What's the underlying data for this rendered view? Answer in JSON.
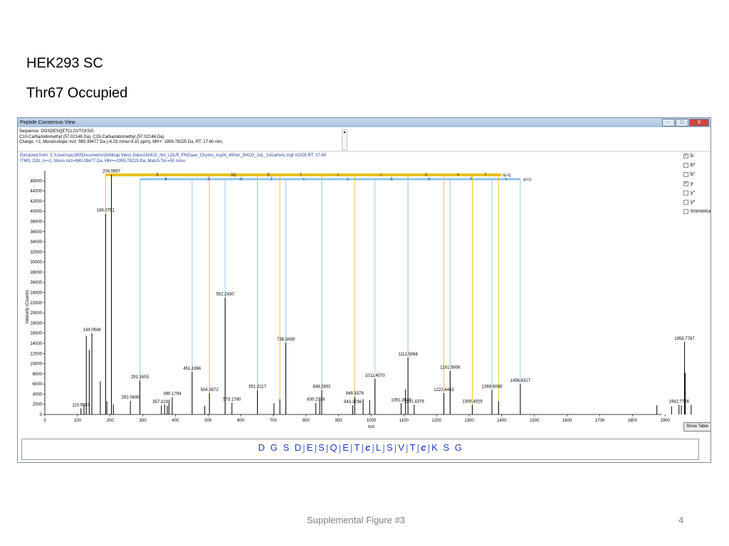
{
  "slide": {
    "title_line1": "HEK293 SC",
    "title_line2": "Thr67 Occupied",
    "footer_caption": "Supplemental Figure #3",
    "page_number": "4"
  },
  "window": {
    "title": "Peptide Consensus View",
    "controls": [
      "-",
      "□",
      "X"
    ]
  },
  "info": {
    "sequence": "Sequence: DGSDESQETCLSVTCKSG",
    "mods": "C10-Carbamidomethyl (57.02146 Da), C15-Carbamidomethyl (57.02146 Da)",
    "charge": "Charge: +2,   Monoisotopic m/z: 980.39477 Da (-4.23 mmu/-4.31 ppm),    MH+: 1959.78225 Da,    RT: 17.60 min,",
    "extracted": "Extracted from: C:\\Users\\qxc95f\\Documents\\Orbitrap Velos Data\\130415_Nis_LDLR_PNGase_Chymo_AspN_45min_5HCD_2uL_1xGalNAc.mgf   #2205   RT: 17.60",
    "scan": "ITMS, CID, z=+2, Mono m/z=980.39477 Da, MH+=1959.78225 Da, Match Tol.=50 mmu"
  },
  "ion_options": [
    {
      "label": "b",
      "checked": true
    },
    {
      "label": "b*",
      "checked": false
    },
    {
      "label": "b°",
      "checked": false
    },
    {
      "label": "y",
      "checked": true
    },
    {
      "label": "y°",
      "checked": false
    },
    {
      "label": "y*",
      "checked": false
    },
    {
      "label": "Immonium",
      "checked": false
    }
  ],
  "show_table_label": "Show Table",
  "sequence_display": {
    "residues": [
      "D",
      "G",
      "S",
      "D",
      "E",
      "S",
      "Q",
      "E",
      "T",
      "c",
      "L",
      "S",
      "V",
      "T",
      "c",
      "K",
      "S",
      "G"
    ]
  },
  "colors": {
    "b_ion": "#e8c01a",
    "y_ion": "#8ec3ea",
    "peak": "#000000",
    "sequence_text": "#2233cc"
  },
  "chart_data": {
    "type": "bar",
    "xlabel": "m/z",
    "ylabel": "Intensity (Counts)",
    "xlim": [
      0,
      2000
    ],
    "ylim": [
      0,
      48000
    ],
    "x_ticks": [
      0,
      100,
      200,
      300,
      400,
      500,
      600,
      700,
      800,
      900,
      1000,
      1100,
      1200,
      1300,
      1400,
      1500,
      1600,
      1700,
      1800,
      1900
    ],
    "y_ticks": [
      0,
      2000,
      4000,
      6000,
      8000,
      10000,
      12000,
      14000,
      16000,
      18000,
      20000,
      22000,
      24000,
      26000,
      28000,
      30000,
      32000,
      34000,
      36000,
      38000,
      40000,
      42000,
      44000,
      46000
    ],
    "b_series_label": "b[+1]",
    "y_series_label": "y[+1]",
    "peaks": [
      {
        "mz": 110.5987,
        "intensity": 1200,
        "label": "110.5987"
      },
      {
        "mz": 120,
        "intensity": 1800,
        "label": ""
      },
      {
        "mz": 127,
        "intensity": 15500,
        "label": ""
      },
      {
        "mz": 136,
        "intensity": 12700,
        "label": ""
      },
      {
        "mz": 144.0648,
        "intensity": 16000,
        "label": "144.0648"
      },
      {
        "mz": 170,
        "intensity": 6500,
        "label": ""
      },
      {
        "mz": 186.0751,
        "intensity": 39500,
        "label": "186.0751"
      },
      {
        "mz": 190,
        "intensity": 2600,
        "label": ""
      },
      {
        "mz": 204.0867,
        "intensity": 47200,
        "label": "204.0867"
      },
      {
        "mz": 210,
        "intensity": 2000,
        "label": ""
      },
      {
        "mz": 262.0846,
        "intensity": 2700,
        "label": "262.0846"
      },
      {
        "mz": 291.1653,
        "intensity": 6700,
        "label": "291.1653"
      },
      {
        "mz": 357.1039,
        "intensity": 1800,
        "label": "357.1039"
      },
      {
        "mz": 367,
        "intensity": 2000,
        "label": ""
      },
      {
        "mz": 375,
        "intensity": 1700,
        "label": ""
      },
      {
        "mz": 380,
        "intensity": 2200,
        "label": ""
      },
      {
        "mz": 390.1794,
        "intensity": 3400,
        "label": "390.1794"
      },
      {
        "mz": 451.1966,
        "intensity": 8400,
        "label": "451.1966"
      },
      {
        "mz": 490,
        "intensity": 1700,
        "label": ""
      },
      {
        "mz": 504.1672,
        "intensity": 4200,
        "label": "504.1672"
      },
      {
        "mz": 552.243,
        "intensity": 23000,
        "label": "552.2430"
      },
      {
        "mz": 573.178,
        "intensity": 2300,
        "label": "573.1780"
      },
      {
        "mz": 651.3117,
        "intensity": 4800,
        "label": "651.3117"
      },
      {
        "mz": 702,
        "intensity": 2200,
        "label": ""
      },
      {
        "mz": 720,
        "intensity": 3000,
        "label": ""
      },
      {
        "mz": 738.3439,
        "intensity": 14100,
        "label": "738.3439"
      },
      {
        "mz": 830.2708,
        "intensity": 2300,
        "label": "830.2708"
      },
      {
        "mz": 842,
        "intensity": 3000,
        "label": ""
      },
      {
        "mz": 848.2891,
        "intensity": 4800,
        "label": "848.2891"
      },
      {
        "mz": 943.3796,
        "intensity": 1800,
        "label": "943.3796"
      },
      {
        "mz": 949.3378,
        "intensity": 3500,
        "label": "949.3378"
      },
      {
        "mz": 975,
        "intensity": 3000,
        "label": ""
      },
      {
        "mz": 995,
        "intensity": 2800,
        "label": ""
      },
      {
        "mz": 1011.457,
        "intensity": 7000,
        "label": "1011.4570"
      },
      {
        "mz": 1091.3638,
        "intensity": 2200,
        "label": "1091.3638"
      },
      {
        "mz": 1105,
        "intensity": 5000,
        "label": ""
      },
      {
        "mz": 1112.5068,
        "intensity": 11200,
        "label": "1112.5068"
      },
      {
        "mz": 1131.4379,
        "intensity": 1900,
        "label": "1131.4379"
      },
      {
        "mz": 1222.4463,
        "intensity": 4200,
        "label": "1222.4463"
      },
      {
        "mz": 1241.5608,
        "intensity": 8600,
        "label": "1241.5608"
      },
      {
        "mz": 1309.4929,
        "intensity": 1900,
        "label": "1309.4929"
      },
      {
        "mz": 1369.6066,
        "intensity": 4800,
        "label": "1369.6066"
      },
      {
        "mz": 1390,
        "intensity": 2600,
        "label": ""
      },
      {
        "mz": 1456.6317,
        "intensity": 6000,
        "label": "1456.6317"
      },
      {
        "mz": 1875,
        "intensity": 1800,
        "label": ""
      },
      {
        "mz": 1920,
        "intensity": 1600,
        "label": ""
      },
      {
        "mz": 1942.7756,
        "intensity": 1900,
        "label": "1942.7756"
      },
      {
        "mz": 1950,
        "intensity": 1800,
        "label": ""
      },
      {
        "mz": 1959.7787,
        "intensity": 14300,
        "label": "1959.7787"
      },
      {
        "mz": 1962,
        "intensity": 8200,
        "label": ""
      },
      {
        "mz": 1980,
        "intensity": 1900,
        "label": ""
      }
    ],
    "b_ion_lines": [
      186.0751,
      504.1672,
      651.3117,
      720,
      848.2891,
      949.3378,
      1112.5068,
      1222.4463,
      1309.4929,
      1390
    ],
    "y_ion_lines": [
      291.1653,
      451.1966,
      552.243,
      651.3117,
      738.3439,
      848.2891,
      1011.457,
      1112.5068,
      1241.5608,
      1369.6066,
      1456.6317
    ],
    "b_labels": [
      "E",
      "SQ",
      "E",
      "T",
      "c",
      "L",
      "S",
      "V",
      "T",
      "c"
    ],
    "y_labels": [
      "K",
      "S",
      "G",
      "T",
      "c",
      "L",
      "S",
      "V",
      "T",
      "c",
      "E"
    ]
  }
}
